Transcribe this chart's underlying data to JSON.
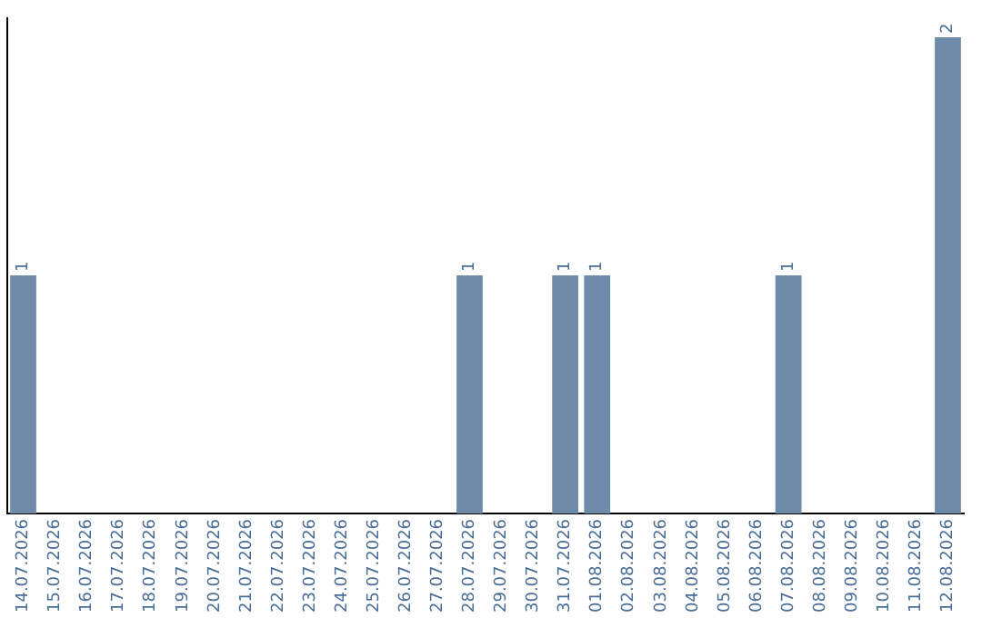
{
  "chart_data": {
    "type": "bar",
    "categories": [
      "14.07.2026",
      "15.07.2026",
      "16.07.2026",
      "17.07.2026",
      "18.07.2026",
      "19.07.2026",
      "20.07.2026",
      "21.07.2026",
      "22.07.2026",
      "23.07.2026",
      "24.07.2026",
      "25.07.2026",
      "26.07.2026",
      "27.07.2026",
      "28.07.2026",
      "29.07.2026",
      "30.07.2026",
      "31.07.2026",
      "01.08.2026",
      "02.08.2026",
      "03.08.2026",
      "04.08.2026",
      "05.08.2026",
      "06.08.2026",
      "07.08.2026",
      "08.08.2026",
      "09.08.2026",
      "10.08.2026",
      "11.08.2026",
      "12.08.2026"
    ],
    "values": [
      1,
      0,
      0,
      0,
      0,
      0,
      0,
      0,
      0,
      0,
      0,
      0,
      0,
      0,
      1,
      0,
      0,
      1,
      1,
      0,
      0,
      0,
      0,
      0,
      1,
      0,
      0,
      0,
      0,
      2
    ],
    "color": "#6e8caa",
    "ylim": [
      0,
      2.08
    ],
    "value_labels": [
      "1",
      null,
      null,
      null,
      null,
      null,
      null,
      null,
      null,
      null,
      null,
      null,
      null,
      null,
      "1",
      null,
      null,
      "1",
      "1",
      null,
      null,
      null,
      null,
      null,
      "1",
      null,
      null,
      null,
      null,
      "2"
    ],
    "tick_labels": "x",
    "grid": false,
    "legend": false
  }
}
